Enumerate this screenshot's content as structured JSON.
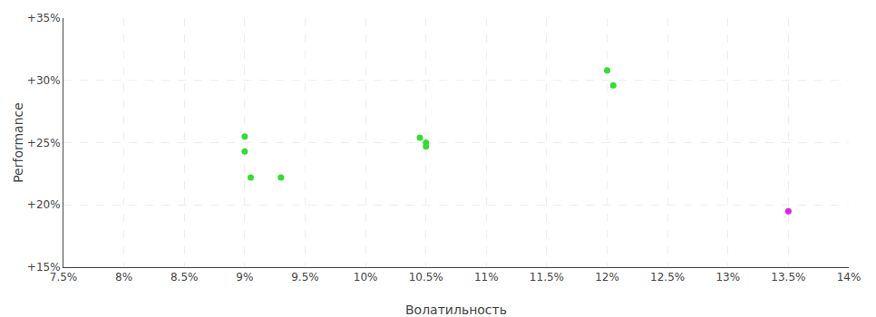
{
  "chart_data": {
    "type": "scatter",
    "xlabel": "Волатильность",
    "ylabel": "Performance",
    "series": [
      {
        "color": "#33dd33",
        "x": [
          9.0,
          9.0,
          9.05,
          9.3,
          10.45,
          10.5,
          10.5,
          12.0,
          12.05
        ],
        "values": [
          25.5,
          24.3,
          22.2,
          22.2,
          25.4,
          25.0,
          24.7,
          30.8,
          29.6
        ]
      },
      {
        "color": "#dd22dd",
        "x": [
          13.5
        ],
        "values": [
          19.5
        ]
      }
    ],
    "xlim": [
      7.5,
      14.0
    ],
    "ylim": [
      15,
      35
    ],
    "xticks": [
      {
        "value": 7.5,
        "label": "7.5%"
      },
      {
        "value": 8.0,
        "label": "8%"
      },
      {
        "value": 8.5,
        "label": "8.5%"
      },
      {
        "value": 9.0,
        "label": "9%"
      },
      {
        "value": 9.5,
        "label": "9.5%"
      },
      {
        "value": 10.0,
        "label": "10%"
      },
      {
        "value": 10.5,
        "label": "10.5%"
      },
      {
        "value": 11.0,
        "label": "11%"
      },
      {
        "value": 11.5,
        "label": "11.5%"
      },
      {
        "value": 12.0,
        "label": "12%"
      },
      {
        "value": 12.5,
        "label": "12.5%"
      },
      {
        "value": 13.0,
        "label": "13%"
      },
      {
        "value": 13.5,
        "label": "13.5%"
      },
      {
        "value": 14.0,
        "label": "14%"
      }
    ],
    "yticks": [
      {
        "value": 15,
        "label": "+15%"
      },
      {
        "value": 20,
        "label": "+20%"
      },
      {
        "value": 25,
        "label": "+25%"
      },
      {
        "value": 30,
        "label": "+30%"
      },
      {
        "value": 35,
        "label": "+35%"
      }
    ],
    "grid": true
  }
}
